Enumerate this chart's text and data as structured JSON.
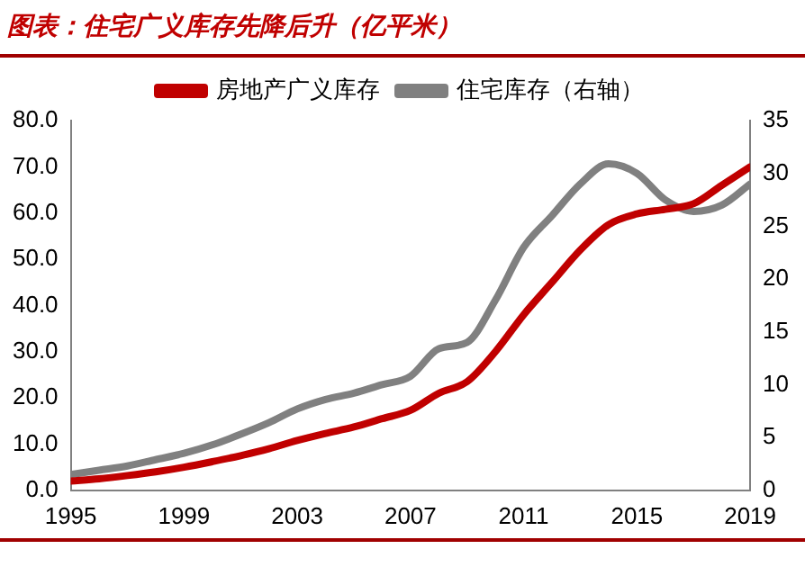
{
  "chart_data": {
    "type": "line",
    "title": "图表：住宅广义库存先降后升（亿平米）",
    "x": [
      1995,
      1996,
      1997,
      1998,
      1999,
      2000,
      2001,
      2002,
      2003,
      2004,
      2005,
      2006,
      2007,
      2008,
      2009,
      2010,
      2011,
      2012,
      2013,
      2014,
      2015,
      2016,
      2017,
      2018,
      2019
    ],
    "series": [
      {
        "name": "房地产广义库存",
        "color": "#c00000",
        "values": [
          2.0,
          2.5,
          3.2,
          4.0,
          5.0,
          6.2,
          7.5,
          9.0,
          10.8,
          12.3,
          13.7,
          15.5,
          17.3,
          21.0,
          23.5,
          30,
          38,
          45,
          52,
          57.5,
          59.8,
          60.8,
          62,
          66,
          70
        ]
      },
      {
        "name": "住宅库存（右轴）",
        "color": "#808080",
        "axis": "y2",
        "values": [
          1.5,
          1.9,
          2.3,
          2.9,
          3.5,
          4.3,
          5.3,
          6.4,
          7.7,
          8.6,
          9.2,
          10.0,
          10.8,
          13.4,
          14.0,
          18.0,
          23.0,
          26.0,
          29.0,
          30.9,
          30.0,
          27.5,
          26.4,
          27.0,
          29.0
        ]
      }
    ],
    "xlim": [
      1995,
      2019
    ],
    "xticks": [
      1995,
      1999,
      2003,
      2007,
      2011,
      2015,
      2019
    ],
    "ylim": [
      0,
      80
    ],
    "yticks": [
      {
        "value": 0,
        "label": "0.0"
      },
      {
        "value": 10,
        "label": "10.0"
      },
      {
        "value": 20,
        "label": "20.0"
      },
      {
        "value": 30,
        "label": "30.0"
      },
      {
        "value": 40,
        "label": "40.0"
      },
      {
        "value": 50,
        "label": "50.0"
      },
      {
        "value": 60,
        "label": "60.0"
      },
      {
        "value": 70,
        "label": "70.0"
      },
      {
        "value": 80,
        "label": "80.0"
      }
    ],
    "y2lim": [
      0,
      35
    ],
    "y2ticks": [
      0,
      5,
      10,
      15,
      20,
      25,
      30,
      35
    ],
    "grid": false,
    "legend": "top",
    "marker": "none",
    "line_style": "solid"
  }
}
